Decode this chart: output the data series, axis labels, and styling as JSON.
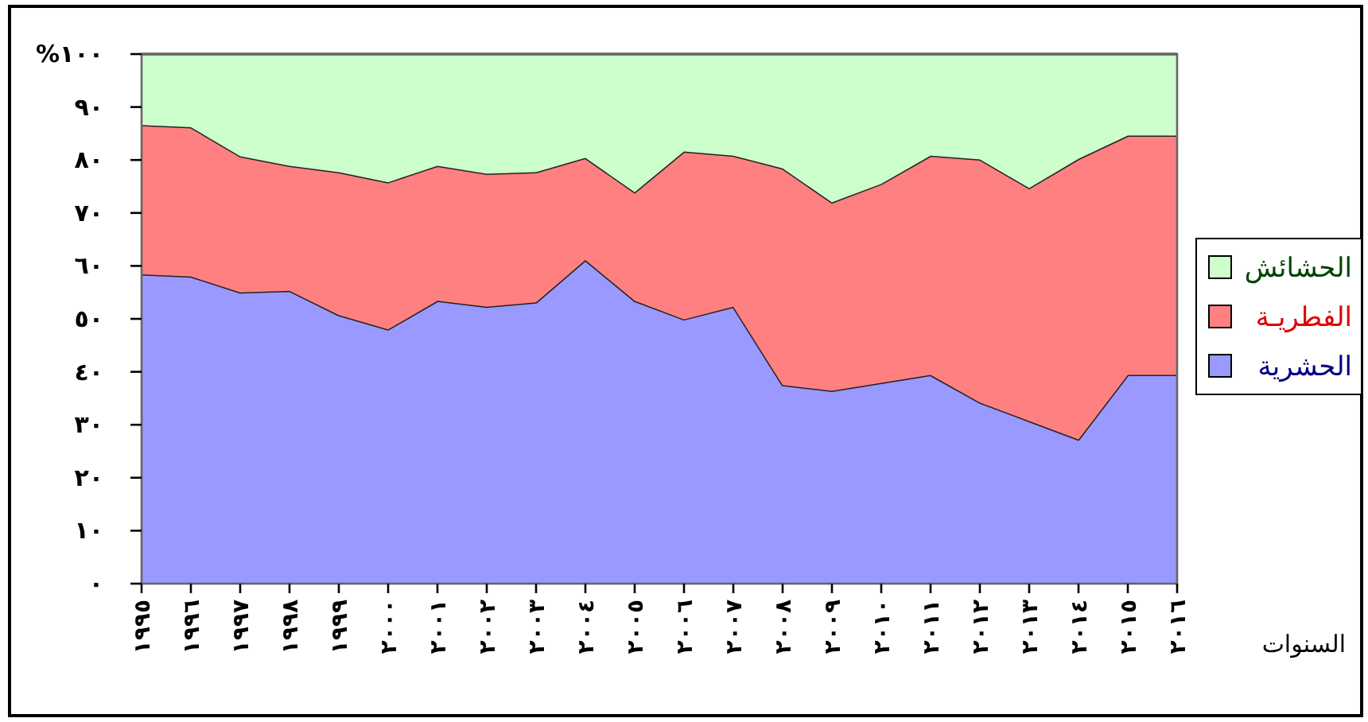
{
  "chart_data": {
    "type": "area",
    "stacked": true,
    "xlabel": "السنوات",
    "legend": "right",
    "ylim": [
      0,
      100
    ],
    "yticks": [
      {
        "value": 0,
        "label": "٠"
      },
      {
        "value": 10,
        "label": "١٠"
      },
      {
        "value": 20,
        "label": "٢٠"
      },
      {
        "value": 30,
        "label": "٣٠"
      },
      {
        "value": 40,
        "label": "٤٠"
      },
      {
        "value": 50,
        "label": "٥٠"
      },
      {
        "value": 60,
        "label": "٦٠"
      },
      {
        "value": 70,
        "label": "٧٠"
      },
      {
        "value": 80,
        "label": "٨٠"
      },
      {
        "value": 90,
        "label": "٩٠"
      },
      {
        "value": 100,
        "label": "%١٠٠"
      }
    ],
    "categories": [
      "١٩٩٥",
      "١٩٩٦",
      "١٩٩٧",
      "١٩٩٨",
      "١٩٩٩",
      "٢٠٠٠",
      "٢٠٠١",
      "٢٠٠٢",
      "٢٠٠٣",
      "٢٠٠٤",
      "٢٠٠٥",
      "٢٠٠٦",
      "٢٠٠٧",
      "٢٠٠٨",
      "٢٠٠٩",
      "٢٠١٠",
      "٢٠١١",
      "٢٠١٢",
      "٢٠١٣",
      "٢٠١٤",
      "٢٠١٥",
      "٢٠١٦"
    ],
    "series": [
      {
        "name": "الحشرية",
        "color": "#9999ff",
        "values": [
          58.4,
          58,
          55,
          55.3,
          50.7,
          48,
          53.4,
          52.3,
          53.1,
          61.1,
          53.4,
          49.9,
          52.3,
          37.5,
          36.4,
          37.9,
          39.4,
          34.2,
          30.7,
          27.2,
          39.4,
          39.4
        ]
      },
      {
        "name": "الفطريـة",
        "color": "#ff8080",
        "values": [
          28.2,
          28.2,
          25.7,
          23.6,
          27,
          27.8,
          25.5,
          25.1,
          24.6,
          19.3,
          20.5,
          31.7,
          28.5,
          40.9,
          35.6,
          37.6,
          41.4,
          45.9,
          44,
          53,
          45.2,
          45.2
        ]
      },
      {
        "name": "الحشائش",
        "color": "#ccffcc",
        "values": [
          13.4,
          13.8,
          19.3,
          21.1,
          22.3,
          24.2,
          21.1,
          22.6,
          22.3,
          19.6,
          26.1,
          18.4,
          19.2,
          21.6,
          28,
          24.5,
          19.2,
          19.9,
          25.3,
          19.8,
          15.4,
          15.4
        ]
      }
    ]
  }
}
